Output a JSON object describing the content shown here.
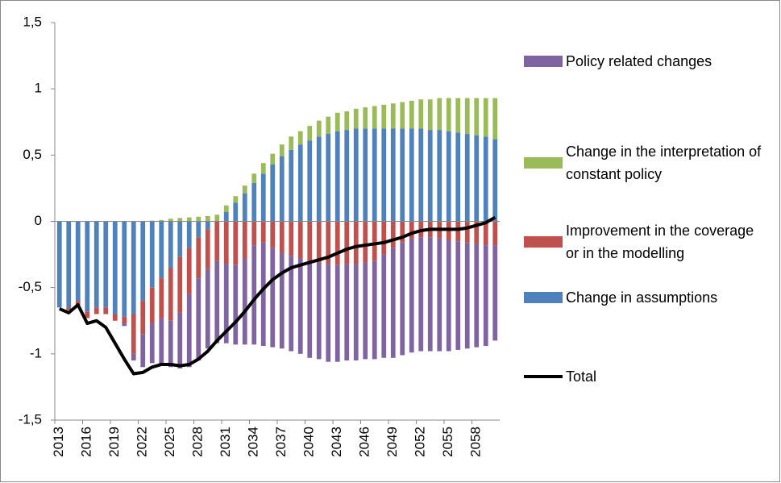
{
  "chart_data": {
    "type": "bar",
    "stacked": true,
    "categories": [
      "2013",
      null,
      null,
      "2016",
      null,
      null,
      "2019",
      null,
      null,
      "2022",
      null,
      null,
      "2025",
      null,
      null,
      "2028",
      null,
      null,
      "2031",
      null,
      null,
      "2034",
      null,
      null,
      "2037",
      null,
      null,
      "2040",
      null,
      null,
      "2043",
      null,
      null,
      "2046",
      null,
      null,
      "2049",
      null,
      null,
      "2052",
      null,
      null,
      "2055",
      null,
      null,
      "2058",
      null,
      null
    ],
    "series": [
      {
        "name": "Policy related changes",
        "color": "#8064a2",
        "values": [
          0,
          0,
          0,
          0,
          0,
          0,
          0,
          -0.02,
          -0.05,
          -0.25,
          -0.3,
          -0.35,
          -0.35,
          -0.42,
          -0.55,
          -0.62,
          -0.6,
          -0.62,
          -0.6,
          -0.6,
          -0.65,
          -0.75,
          -0.78,
          -0.75,
          -0.72,
          -0.72,
          -0.72,
          -0.73,
          -0.73,
          -0.74,
          -0.73,
          -0.73,
          -0.73,
          -0.73,
          -0.74,
          -0.78,
          -0.83,
          -0.85,
          -0.86,
          -0.86,
          -0.86,
          -0.85,
          -0.84,
          -0.82,
          -0.8,
          -0.78,
          -0.76,
          -0.72
        ]
      },
      {
        "name": "Change in the interpretation of constant policy",
        "color": "#9bbb59",
        "values": [
          0,
          0,
          0,
          0,
          0,
          0,
          0,
          0,
          0,
          0,
          0.005,
          0.01,
          0.02,
          0.025,
          0.03,
          0.035,
          0.04,
          0.05,
          0.05,
          0.05,
          0.06,
          0.07,
          0.08,
          0.08,
          0.09,
          0.1,
          0.1,
          0.11,
          0.12,
          0.13,
          0.14,
          0.14,
          0.15,
          0.16,
          0.17,
          0.18,
          0.19,
          0.2,
          0.21,
          0.22,
          0.23,
          0.24,
          0.25,
          0.26,
          0.27,
          0.28,
          0.29,
          0.31
        ]
      },
      {
        "name": "Improvement in the coverage or in the modelling",
        "color": "#c0504d",
        "values": [
          0,
          -0.02,
          -0.03,
          -0.05,
          -0.05,
          -0.05,
          -0.05,
          -0.05,
          -0.3,
          -0.25,
          -0.27,
          -0.3,
          -0.4,
          -0.42,
          -0.35,
          -0.31,
          -0.3,
          -0.3,
          -0.32,
          -0.33,
          -0.28,
          -0.18,
          -0.16,
          -0.2,
          -0.24,
          -0.26,
          -0.28,
          -0.3,
          -0.31,
          -0.32,
          -0.33,
          -0.32,
          -0.32,
          -0.31,
          -0.3,
          -0.25,
          -0.2,
          -0.16,
          -0.13,
          -0.12,
          -0.12,
          -0.13,
          -0.14,
          -0.15,
          -0.16,
          -0.17,
          -0.18,
          -0.18
        ]
      },
      {
        "name": "Change in assumptions",
        "color": "#4f81bd",
        "values": [
          -0.65,
          -0.65,
          -0.6,
          -0.68,
          -0.65,
          -0.65,
          -0.7,
          -0.72,
          -0.7,
          -0.6,
          -0.5,
          -0.43,
          -0.35,
          -0.27,
          -0.2,
          -0.12,
          -0.06,
          0,
          0.07,
          0.14,
          0.21,
          0.29,
          0.36,
          0.43,
          0.49,
          0.54,
          0.58,
          0.61,
          0.64,
          0.66,
          0.68,
          0.69,
          0.7,
          0.7,
          0.7,
          0.7,
          0.7,
          0.7,
          0.7,
          0.7,
          0.69,
          0.69,
          0.68,
          0.67,
          0.66,
          0.65,
          0.64,
          0.62
        ]
      },
      {
        "name": "Total",
        "type": "line",
        "color": "#000000",
        "values": [
          -0.66,
          -0.69,
          -0.63,
          -0.77,
          -0.75,
          -0.8,
          -0.92,
          -1.04,
          -1.15,
          -1.14,
          -1.1,
          -1.08,
          -1.08,
          -1.09,
          -1.08,
          -1.04,
          -0.98,
          -0.9,
          -0.83,
          -0.76,
          -0.68,
          -0.59,
          -0.51,
          -0.44,
          -0.39,
          -0.35,
          -0.33,
          -0.31,
          -0.29,
          -0.27,
          -0.24,
          -0.21,
          -0.19,
          -0.18,
          -0.17,
          -0.16,
          -0.14,
          -0.12,
          -0.09,
          -0.07,
          -0.06,
          -0.06,
          -0.06,
          -0.06,
          -0.05,
          -0.03,
          -0.01,
          0.03
        ]
      }
    ],
    "ylim": [
      -1.5,
      1.5
    ],
    "yticks": [
      {
        "value": -1.5,
        "label": "-1,5"
      },
      -1,
      {
        "value": -0.5,
        "label": "-0,5"
      },
      0,
      {
        "value": 0.5,
        "label": "0,5"
      },
      1,
      {
        "value": 1.5,
        "label": "1,5"
      }
    ],
    "legend": "right"
  }
}
